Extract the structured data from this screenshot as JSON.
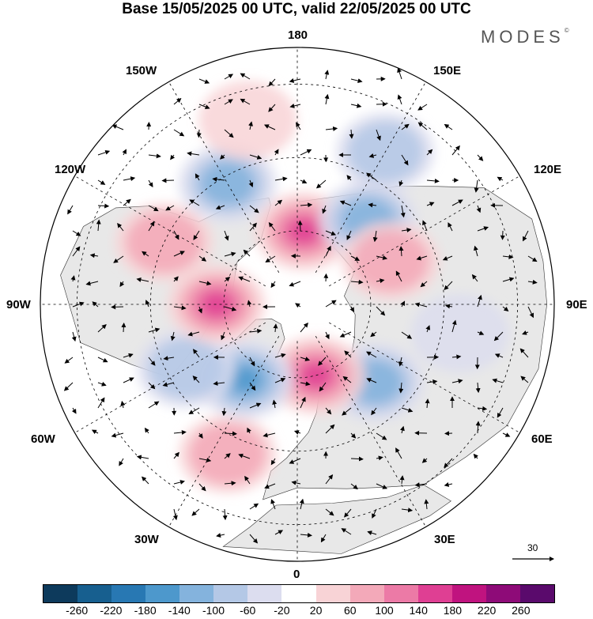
{
  "title": "Base 15/05/2025 00 UTC, valid 22/05/2025 00 UTC",
  "brand": "MODES",
  "brand_mark": "©",
  "reference_vector": "30",
  "longitude_labels": {
    "lon_180": "180",
    "lon_150w": "150W",
    "lon_150e": "150E",
    "lon_120w": "120W",
    "lon_120e": "120E",
    "lon_90w": "90W",
    "lon_90e": "90E",
    "lon_60w": "60W",
    "lon_60e": "60E",
    "lon_30w": "30W",
    "lon_30e": "30E",
    "lon_0": "0"
  },
  "colorbar": {
    "ticks": [
      "-260",
      "-220",
      "-180",
      "-140",
      "-100",
      "-60",
      "-20",
      "20",
      "60",
      "100",
      "140",
      "180",
      "220",
      "260"
    ],
    "colors": [
      "#0d3a5c",
      "#175f8f",
      "#2878b3",
      "#4d98cc",
      "#84b3dd",
      "#b4c8e6",
      "#dcddef",
      "#ffffff",
      "#f8d3d6",
      "#f3a9b9",
      "#ec7aa6",
      "#df3f93",
      "#c0137f",
      "#8e0b78",
      "#5a0a6c"
    ]
  },
  "anomaly_cells": [
    {
      "lon": 175,
      "lat": 70,
      "sign": "positive",
      "level": 4
    },
    {
      "lon": 150,
      "lat": 42,
      "sign": "negative",
      "level": 2
    },
    {
      "lon": 140,
      "lat": 60,
      "sign": "negative",
      "level": 3
    },
    {
      "lon": 115,
      "lat": 62,
      "sign": "positive",
      "level": 2
    },
    {
      "lon": 80,
      "lat": 45,
      "sign": "negative",
      "level": 1
    },
    {
      "lon": 45,
      "lat": 60,
      "sign": "negative",
      "level": 3
    },
    {
      "lon": 15,
      "lat": 70,
      "sign": "positive",
      "level": 4
    },
    {
      "lon": -25,
      "lat": 45,
      "sign": "positive",
      "level": 2
    },
    {
      "lon": -35,
      "lat": 65,
      "sign": "negative",
      "level": 4
    },
    {
      "lon": -60,
      "lat": 55,
      "sign": "negative",
      "level": 2
    },
    {
      "lon": -90,
      "lat": 68,
      "sign": "positive",
      "level": 4
    },
    {
      "lon": -115,
      "lat": 50,
      "sign": "positive",
      "level": 2
    },
    {
      "lon": -150,
      "lat": 52,
      "sign": "negative",
      "level": 3
    },
    {
      "lon": -165,
      "lat": 38,
      "sign": "positive",
      "level": 1
    }
  ],
  "map_colors": {
    "land": "#e8e8e8",
    "coast": "#333333",
    "grid": "#000000",
    "vector": "#000000"
  }
}
